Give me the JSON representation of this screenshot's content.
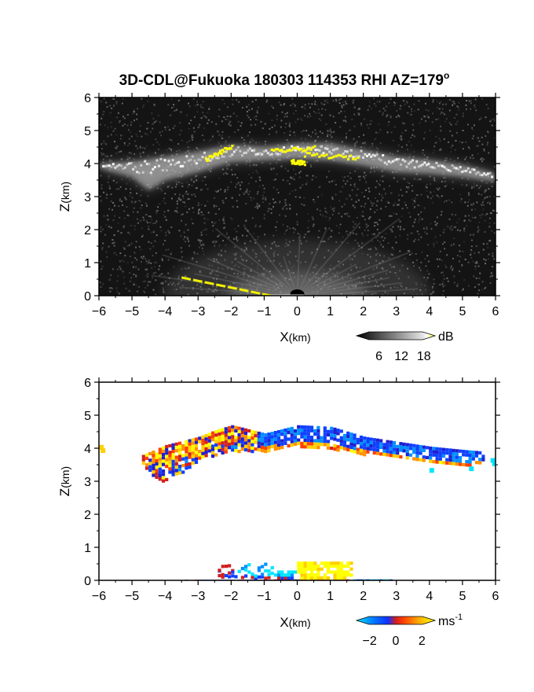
{
  "title_main": "3D-CDL@Fukuoka 180303 114353 RHI AZ=179",
  "title_degree": "o",
  "chart_data": [
    {
      "type": "heatmap",
      "name": "reflectivity",
      "xlabel_main": "X",
      "xlabel_unit": "(km)",
      "ylabel_main": "Z",
      "ylabel_unit": "(km)",
      "xlim": [
        -6,
        6
      ],
      "ylim": [
        0,
        6
      ],
      "xticks": [
        "-6",
        "-5",
        "-4",
        "-3",
        "-2",
        "-1",
        "0",
        "1",
        "2",
        "3",
        "4",
        "5",
        "6"
      ],
      "yticks": [
        "0",
        "1",
        "2",
        "3",
        "4",
        "5",
        "6"
      ],
      "background": "#141414",
      "cloud_layer": {
        "top_km": [
          [
            -6.0,
            4.0
          ],
          [
            -5.0,
            4.05
          ],
          [
            -4.0,
            4.2
          ],
          [
            -3.0,
            4.35
          ],
          [
            -2.0,
            4.55
          ],
          [
            -1.0,
            4.5
          ],
          [
            0.0,
            4.6
          ],
          [
            1.0,
            4.6
          ],
          [
            2.0,
            4.4
          ],
          [
            3.0,
            4.2
          ],
          [
            4.0,
            4.1
          ],
          [
            5.0,
            3.95
          ],
          [
            6.0,
            3.7
          ]
        ],
        "bottom_km": [
          [
            -6.0,
            3.85
          ],
          [
            -5.0,
            3.6
          ],
          [
            -4.5,
            3.2
          ],
          [
            -4.0,
            3.5
          ],
          [
            -3.0,
            3.75
          ],
          [
            -2.0,
            4.05
          ],
          [
            -1.0,
            4.1
          ],
          [
            0.0,
            4.15
          ],
          [
            1.0,
            4.1
          ],
          [
            2.0,
            3.95
          ],
          [
            3.0,
            3.75
          ],
          [
            4.0,
            3.7
          ],
          [
            5.0,
            3.6
          ],
          [
            6.0,
            3.45
          ]
        ]
      },
      "high_echo_segments": [
        {
          "x": [
            -2.8,
            -2.0
          ],
          "z": [
            4.15,
            4.55
          ]
        },
        {
          "x": [
            -0.8,
            0.5
          ],
          "z": [
            4.4,
            4.5
          ]
        },
        {
          "x": [
            0.2,
            1.8
          ],
          "z": [
            4.3,
            4.2
          ]
        },
        {
          "x": [
            -0.2,
            0.2
          ],
          "z": [
            4.1,
            4.05
          ]
        }
      ],
      "ground_clutter_line": {
        "x": [
          -3.5,
          -0.8
        ],
        "z": [
          0.55,
          0.0
        ]
      },
      "colorbar": {
        "ticks": [
          "6",
          "12",
          "18"
        ],
        "unit": "dB",
        "range": [
          0,
          21
        ]
      }
    },
    {
      "type": "heatmap",
      "name": "doppler-velocity",
      "xlabel_main": "X",
      "xlabel_unit": "(km)",
      "ylabel_main": "Z",
      "ylabel_unit": "(km)",
      "xlim": [
        -6,
        6
      ],
      "ylim": [
        0,
        6
      ],
      "xticks": [
        "-6",
        "-5",
        "-4",
        "-3",
        "-2",
        "-1",
        "0",
        "1",
        "2",
        "3",
        "4",
        "5",
        "6"
      ],
      "yticks": [
        "0",
        "1",
        "2",
        "3",
        "4",
        "5",
        "6"
      ],
      "background": "#ffffff",
      "colorbar": {
        "ticks": [
          "-2",
          "0",
          "2"
        ],
        "unit": "ms",
        "unit_sup": "-1",
        "range": [
          -3,
          3
        ]
      }
    }
  ]
}
